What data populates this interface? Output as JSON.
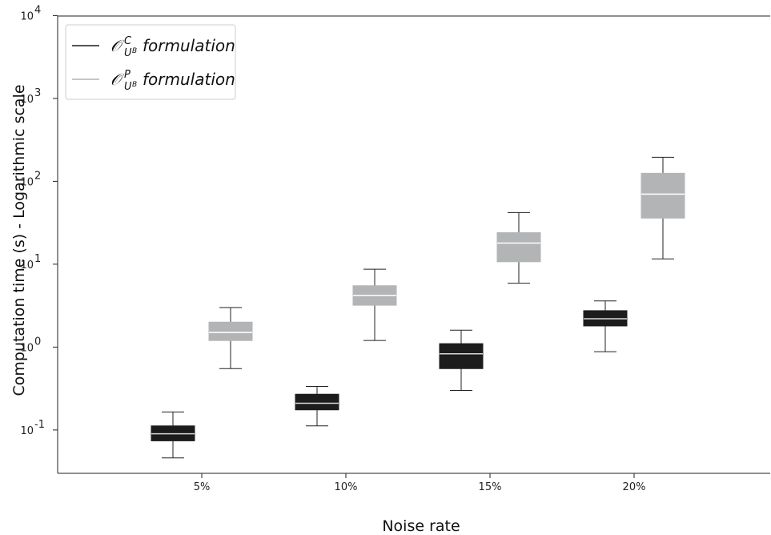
{
  "chart_data": {
    "type": "box",
    "xlabel": "Noise rate",
    "ylabel": "Computation time (s) - Logarithmic scale",
    "yscale": "log",
    "ylim": [
      0.03,
      10000
    ],
    "yticks": [
      {
        "base": "10",
        "exp": "-1"
      },
      {
        "base": "10",
        "exp": "0"
      },
      {
        "base": "10",
        "exp": "1"
      },
      {
        "base": "10",
        "exp": "2"
      },
      {
        "base": "10",
        "exp": "3"
      },
      {
        "base": "10",
        "exp": "4"
      }
    ],
    "categories": [
      "5%",
      "10%",
      "15%",
      "20%"
    ],
    "legend_position": "upper-left",
    "series": [
      {
        "legend": {
          "symbol": "𝒪",
          "sup": "C",
          "sub": "U",
          "subsup": "B",
          "text": "formulation"
        },
        "color": "#1c1c1c",
        "median_color": "#d8d8d8",
        "boxes": [
          {
            "whisker_low": 0.046,
            "q1": 0.074,
            "median": 0.09,
            "q3": 0.112,
            "whisker_high": 0.165
          },
          {
            "whisker_low": 0.112,
            "q1": 0.175,
            "median": 0.21,
            "q3": 0.27,
            "whisker_high": 0.335
          },
          {
            "whisker_low": 0.3,
            "q1": 0.55,
            "median": 0.83,
            "q3": 1.1,
            "whisker_high": 1.6
          },
          {
            "whisker_low": 0.88,
            "q1": 1.8,
            "median": 2.2,
            "q3": 2.75,
            "whisker_high": 3.6
          }
        ]
      },
      {
        "legend": {
          "symbol": "𝒪",
          "sup": "P",
          "sub": "U",
          "subsup": "B",
          "text": "formulation"
        },
        "color": "#b3b4b6",
        "median_color": "#ffffff",
        "boxes": [
          {
            "whisker_low": 0.55,
            "q1": 1.2,
            "median": 1.5,
            "q3": 2.0,
            "whisker_high": 3.0
          },
          {
            "whisker_low": 1.2,
            "q1": 3.2,
            "median": 4.2,
            "q3": 5.5,
            "whisker_high": 8.7
          },
          {
            "whisker_low": 5.9,
            "q1": 10.7,
            "median": 18.0,
            "q3": 24.0,
            "whisker_high": 42.0
          },
          {
            "whisker_low": 11.6,
            "q1": 36.0,
            "median": 70.0,
            "q3": 125.0,
            "whisker_high": 195.0
          }
        ]
      }
    ]
  }
}
